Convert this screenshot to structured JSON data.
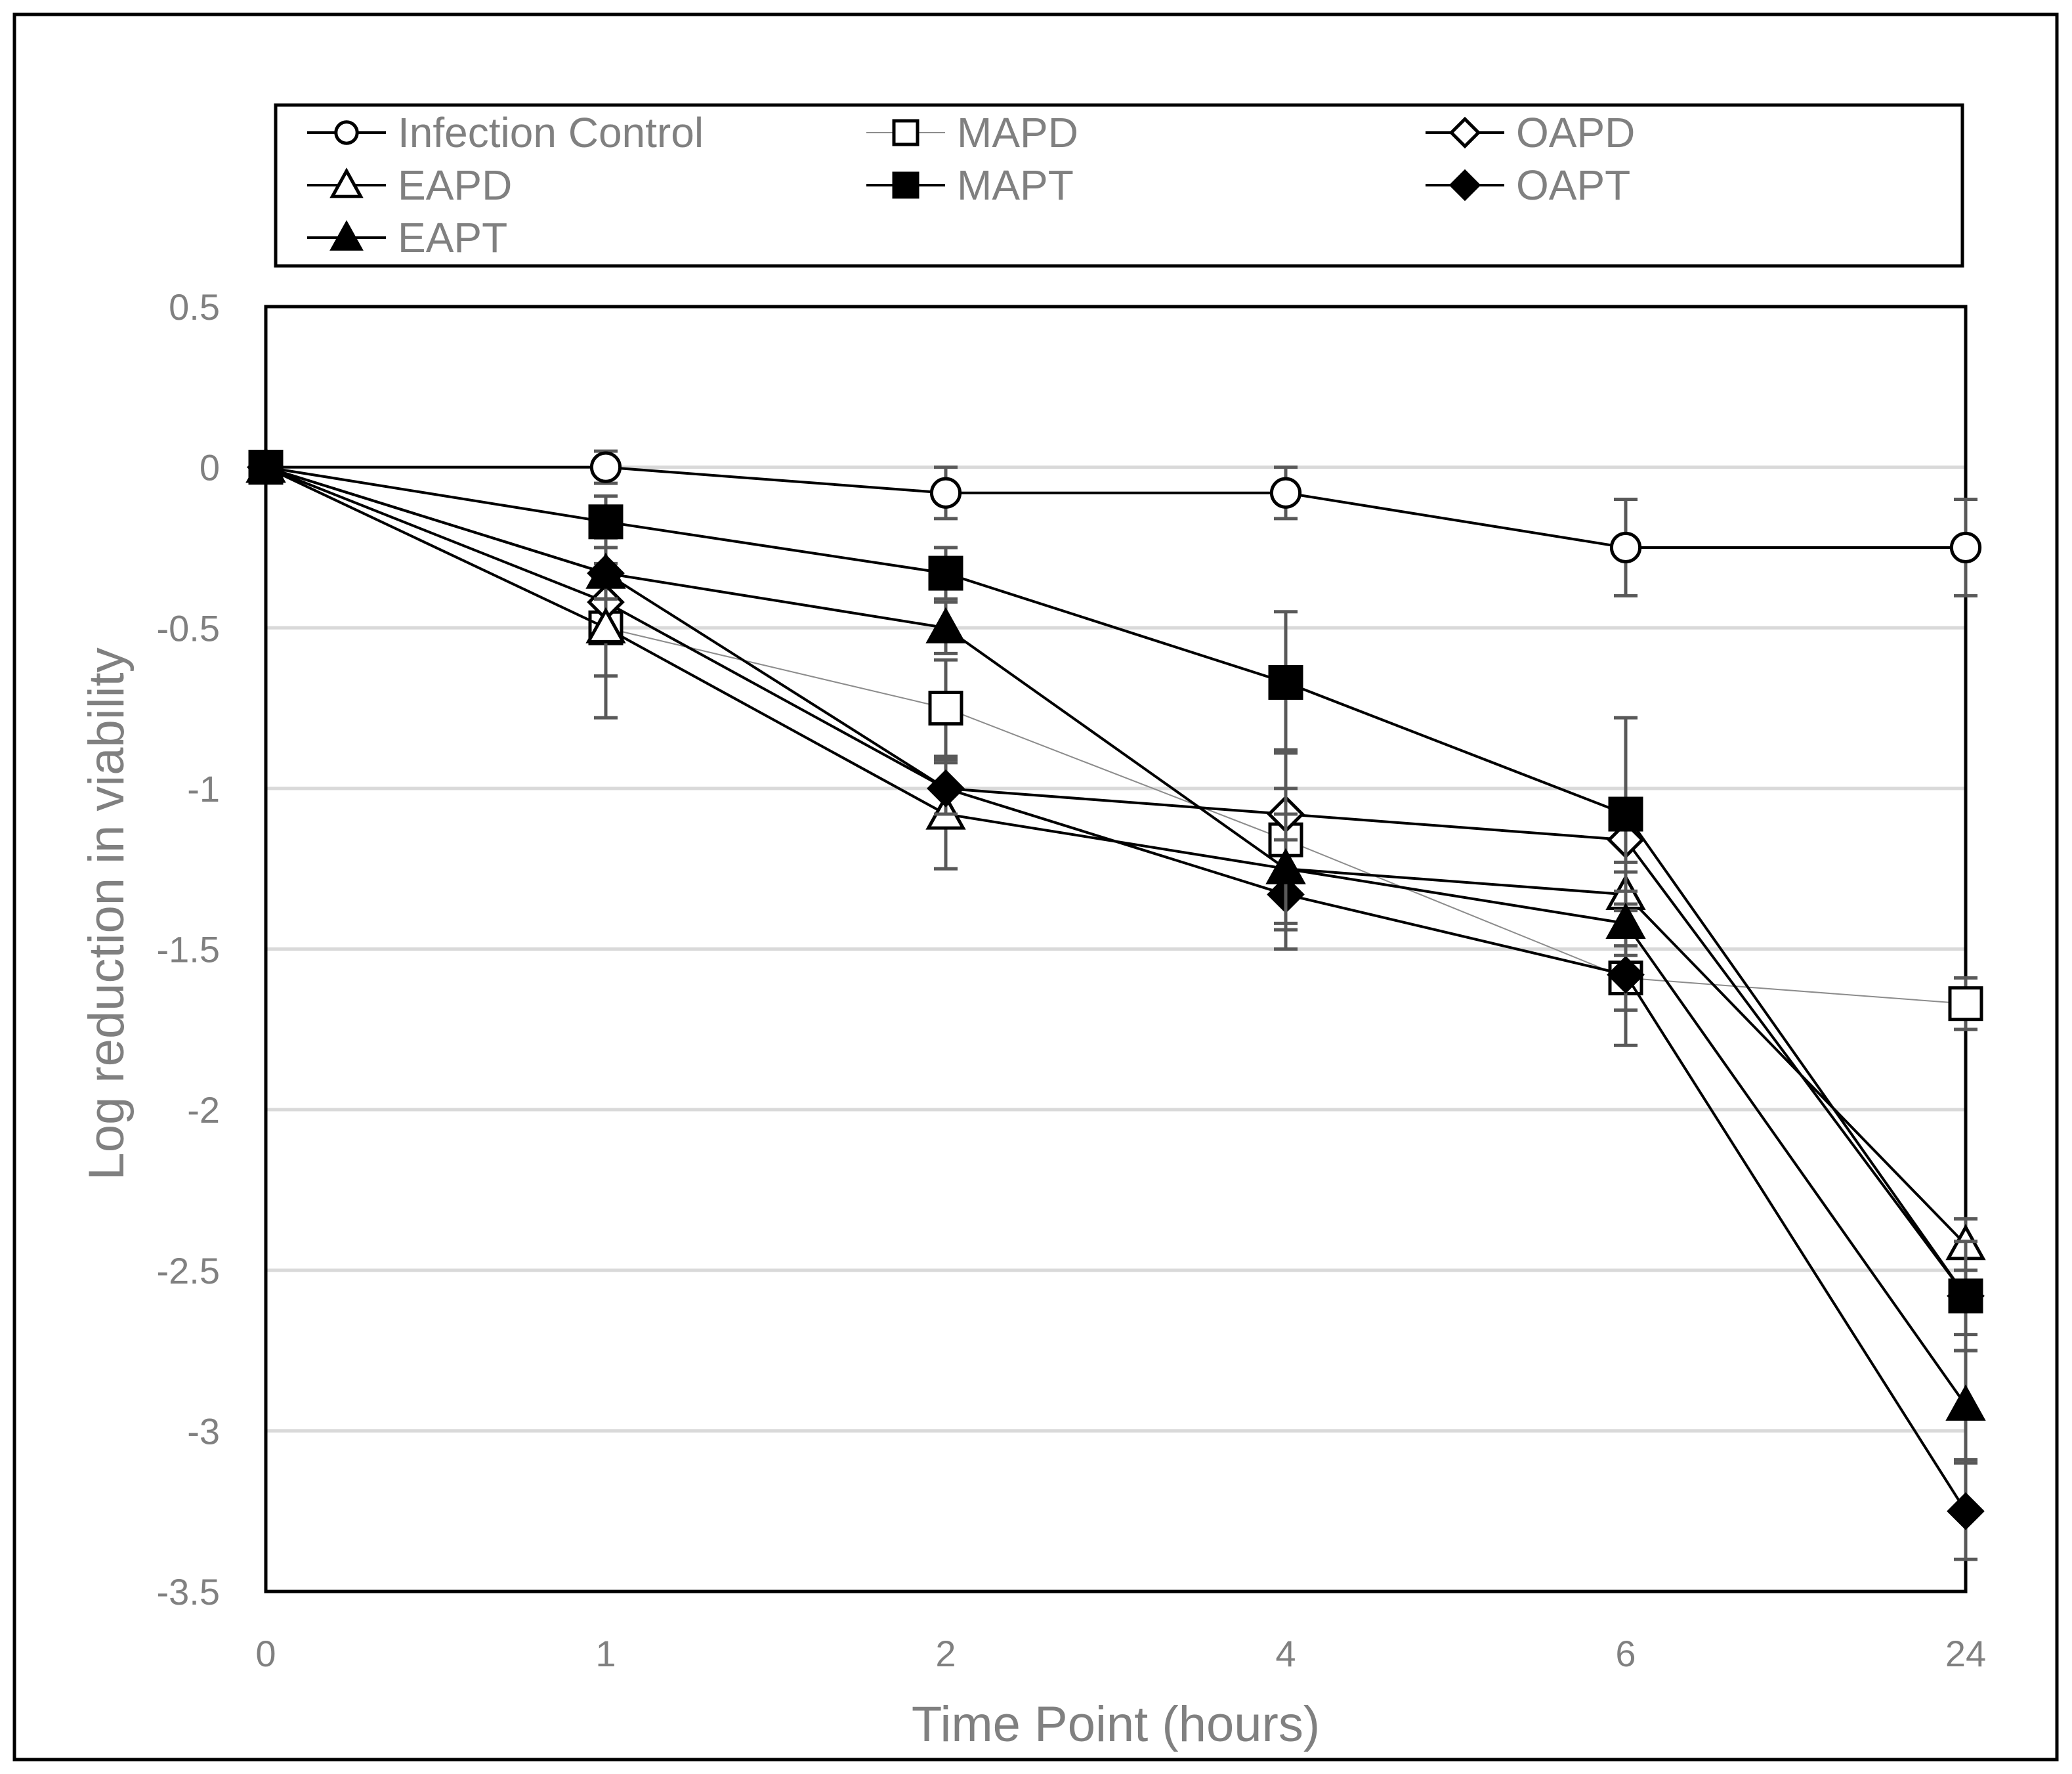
{
  "chart_data": {
    "type": "line",
    "title": "",
    "xlabel": "Time Point (hours)",
    "ylabel": "Log reduction in viability",
    "categories": [
      "0",
      "1",
      "2",
      "4",
      "6",
      "24"
    ],
    "ylim": [
      -3.5,
      0.5
    ],
    "yticks": [
      0.5,
      0,
      -0.5,
      -1,
      -1.5,
      -2,
      -2.5,
      -3,
      -3.5
    ],
    "ytick_labels": [
      "0.5",
      "0",
      "-0.5",
      "-1",
      "-1.5",
      "-2",
      "-2.5",
      "-3",
      "-3.5"
    ],
    "grid": true,
    "legend_position": "top",
    "series": [
      {
        "name": "Infection Control",
        "marker": "circle",
        "filled": false,
        "thin_line": false,
        "values": [
          0,
          0,
          -0.08,
          -0.08,
          -0.25,
          -0.25
        ],
        "errors": [
          0,
          0.05,
          0.08,
          0.08,
          0.15,
          0.15
        ]
      },
      {
        "name": "MAPD",
        "marker": "square",
        "filled": false,
        "thin_line": true,
        "values": [
          0,
          -0.5,
          -0.75,
          -1.16,
          -1.59,
          -1.67
        ],
        "errors": [
          0,
          0.28,
          0.15,
          0.28,
          0.1,
          0.08
        ]
      },
      {
        "name": "OAPD",
        "marker": "diamond",
        "filled": false,
        "thin_line": false,
        "values": [
          0,
          -0.42,
          -1.0,
          -1.08,
          -1.16,
          -2.58
        ],
        "errors": [
          0,
          0.12,
          0.1,
          0.2,
          0.1,
          0.12
        ]
      },
      {
        "name": "EAPD",
        "marker": "triangle",
        "filled": false,
        "thin_line": false,
        "values": [
          0,
          -0.5,
          -1.08,
          -1.25,
          -1.33,
          -2.42
        ],
        "errors": [
          0,
          0.15,
          0.17,
          0.25,
          0.1,
          0.08
        ]
      },
      {
        "name": "MAPT",
        "marker": "square",
        "filled": true,
        "thin_line": false,
        "values": [
          0,
          -0.17,
          -0.33,
          -0.67,
          -1.08,
          -2.58
        ],
        "errors": [
          0,
          0.08,
          0.08,
          0.22,
          0.3,
          0.17
        ]
      },
      {
        "name": "OAPT",
        "marker": "diamond",
        "filled": true,
        "thin_line": false,
        "values": [
          0,
          -0.33,
          -1.0,
          -1.33,
          -1.58,
          -3.25
        ],
        "errors": [
          0,
          0.08,
          0.08,
          0.17,
          0.22,
          0.15
        ]
      },
      {
        "name": "EAPT",
        "marker": "triangle",
        "filled": true,
        "thin_line": false,
        "values": [
          0,
          -0.33,
          -0.5,
          -1.25,
          -1.42,
          -2.92
        ],
        "errors": [
          0,
          0.08,
          0.08,
          0.17,
          0.1,
          0.17
        ]
      }
    ]
  }
}
